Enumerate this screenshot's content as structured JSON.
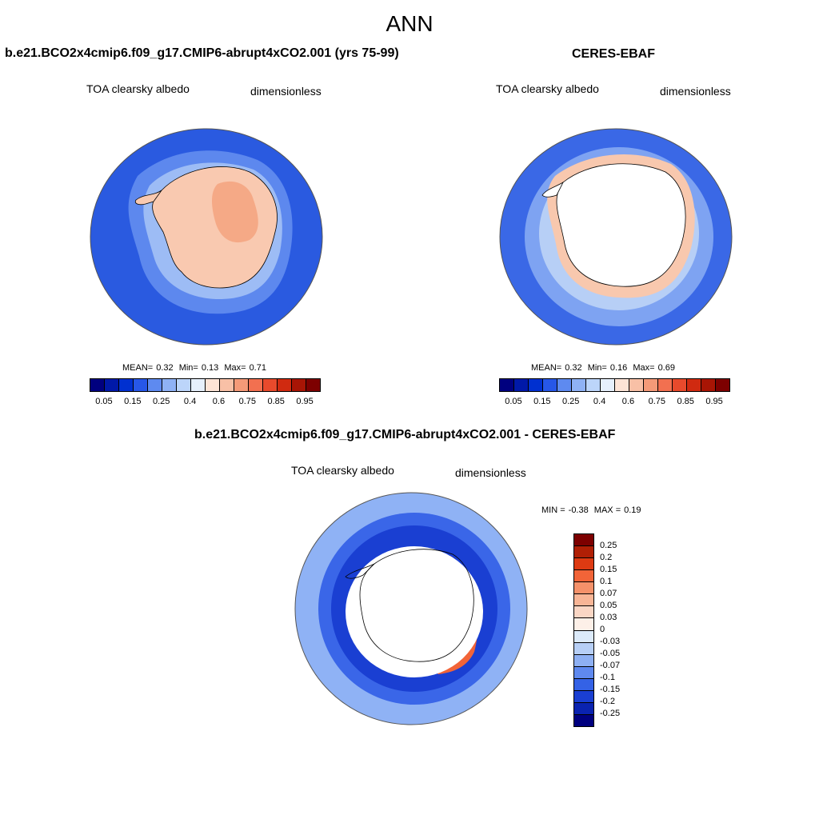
{
  "figure": {
    "title": "ANN"
  },
  "panels": {
    "model": {
      "title": "b.e21.BCO2x4cmip6.f09_g17.CMIP6-abrupt4xCO2.001 (yrs 75-99)",
      "variable": "TOA clearsky albedo",
      "units": "dimensionless",
      "stats": {
        "mean_label": "MEAN=",
        "mean": "0.32",
        "min_label": "Min=",
        "min": "0.13",
        "max_label": "Max=",
        "max": "0.71"
      }
    },
    "obs": {
      "title": "CERES-EBAF",
      "variable": "TOA clearsky albedo",
      "units": "dimensionless",
      "stats": {
        "mean_label": "MEAN=",
        "mean": "0.32",
        "min_label": "Min=",
        "min": "0.16",
        "max_label": "Max=",
        "max": "0.69"
      }
    },
    "diff": {
      "title": "b.e21.BCO2x4cmip6.f09_g17.CMIP6-abrupt4xCO2.001 - CERES-EBAF",
      "variable": "TOA clearsky albedo",
      "units": "dimensionless",
      "stats": {
        "min_label": "MIN =",
        "min": "-0.38",
        "max_label": "MAX =",
        "max": "0.19"
      }
    }
  },
  "colorbars": {
    "absolute": {
      "labels": [
        "0.05",
        "0.15",
        "0.25",
        "0.4",
        "0.6",
        "0.75",
        "0.85",
        "0.95"
      ],
      "colors": [
        "#00007f",
        "#0019a8",
        "#0030d0",
        "#2757e8",
        "#5e8af0",
        "#8fb2f5",
        "#bcd5fa",
        "#e6f0fc",
        "#fde4d6",
        "#f8c0a6",
        "#f59a78",
        "#f27050",
        "#e84a2c",
        "#d02a10",
        "#a81505",
        "#7d0000"
      ]
    },
    "difference": {
      "labels": [
        "0.25",
        "0.2",
        "0.15",
        "0.1",
        "0.07",
        "0.05",
        "0.03",
        "0",
        "-0.03",
        "-0.05",
        "-0.07",
        "-0.1",
        "-0.15",
        "-0.2",
        "-0.25"
      ],
      "colors": [
        "#7d0000",
        "#b01f05",
        "#dd3a12",
        "#f26438",
        "#f5916a",
        "#f8b596",
        "#fad6c4",
        "#fdf0e8",
        "#dceafa",
        "#b7cff6",
        "#8eb0f3",
        "#5f89ef",
        "#3462e6",
        "#1a3fd2",
        "#0a23b0",
        "#00007f"
      ]
    }
  },
  "chart_data": [
    {
      "type": "heatmap",
      "title": "b.e21.BCO2x4cmip6.f09_g17.CMIP6-abrupt4xCO2.001 (yrs 75-99)",
      "variable": "TOA clearsky albedo",
      "projection": "south polar stereographic",
      "mean": 0.32,
      "min": 0.13,
      "max": 0.71,
      "levels": [
        0.05,
        0.15,
        0.25,
        0.4,
        0.6,
        0.75,
        0.85,
        0.95
      ]
    },
    {
      "type": "heatmap",
      "title": "CERES-EBAF",
      "variable": "TOA clearsky albedo",
      "projection": "south polar stereographic",
      "mean": 0.32,
      "min": 0.16,
      "max": 0.69,
      "levels": [
        0.05,
        0.15,
        0.25,
        0.4,
        0.6,
        0.75,
        0.85,
        0.95
      ]
    },
    {
      "type": "heatmap",
      "title": "b.e21.BCO2x4cmip6.f09_g17.CMIP6-abrupt4xCO2.001 - CERES-EBAF",
      "variable": "TOA clearsky albedo",
      "projection": "south polar stereographic",
      "min": -0.38,
      "max": 0.19,
      "levels": [
        -0.25,
        -0.2,
        -0.15,
        -0.1,
        -0.07,
        -0.05,
        -0.03,
        0,
        0.03,
        0.05,
        0.07,
        0.1,
        0.15,
        0.2,
        0.25
      ]
    }
  ]
}
